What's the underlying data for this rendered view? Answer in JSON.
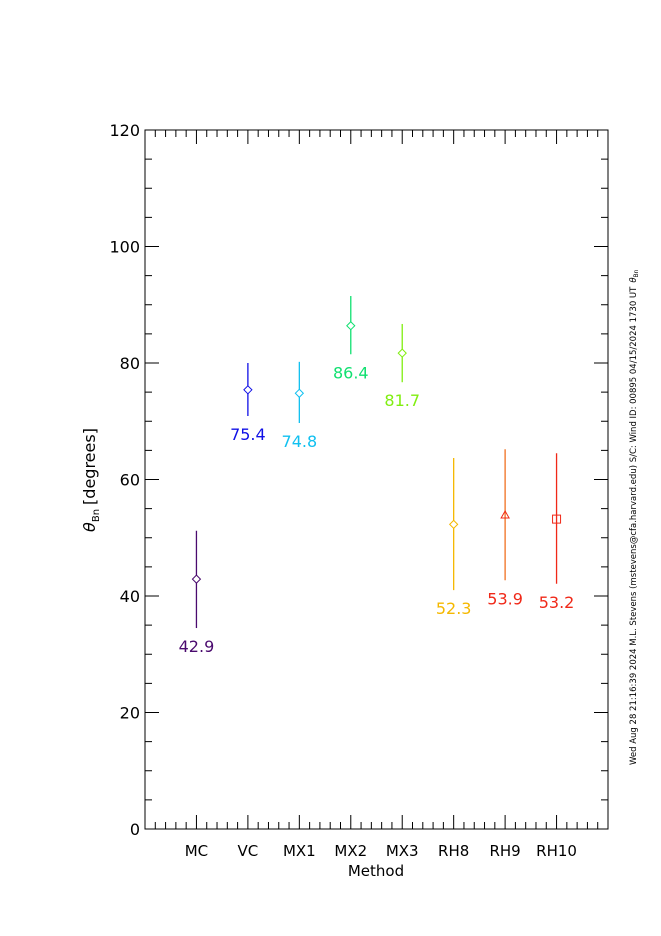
{
  "chart_data": {
    "type": "scatter",
    "title": "",
    "xlabel": "Method",
    "ylabel_symbol": "θ",
    "ylabel_subscript": "Bn",
    "ylabel_units": "[degrees]",
    "ylim": [
      0,
      120
    ],
    "yticks": [
      0,
      20,
      40,
      60,
      80,
      100,
      120
    ],
    "yminor_step": 5,
    "xlim": [
      0,
      9
    ],
    "grid": false,
    "categories": [
      "MC",
      "VC",
      "MX1",
      "MX2",
      "MX3",
      "RH8",
      "RH9",
      "RH10"
    ],
    "points": [
      {
        "method": "MC",
        "value": 42.9,
        "err_low": 34.5,
        "err_high": 51.2,
        "label": "42.9",
        "symbol": "diamond",
        "color": "#4a0a6e",
        "bar_color": "#4a0a6e"
      },
      {
        "method": "VC",
        "value": 75.4,
        "err_low": 70.9,
        "err_high": 80.0,
        "label": "75.4",
        "symbol": "diamond",
        "color": "#1010e6",
        "bar_color": "#1010e6"
      },
      {
        "method": "MX1",
        "value": 74.8,
        "err_low": 69.7,
        "err_high": 80.2,
        "label": "74.8",
        "symbol": "diamond",
        "color": "#10c0f0",
        "bar_color": "#10c0f0"
      },
      {
        "method": "MX2",
        "value": 86.4,
        "err_low": 81.5,
        "err_high": 91.5,
        "label": "86.4",
        "symbol": "diamond",
        "color": "#10e070",
        "bar_color": "#10e070"
      },
      {
        "method": "MX3",
        "value": 81.7,
        "err_low": 76.7,
        "err_high": 86.7,
        "label": "81.7",
        "symbol": "diamond",
        "color": "#80ee10",
        "bar_color": "#80ee10"
      },
      {
        "method": "RH8",
        "value": 52.3,
        "err_low": 41.0,
        "err_high": 63.7,
        "label": "52.3",
        "symbol": "diamond",
        "color": "#f5b800",
        "bar_color": "#f5b800"
      },
      {
        "method": "RH9",
        "value": 53.9,
        "err_low": 42.7,
        "err_high": 65.2,
        "label": "53.9",
        "symbol": "triangle",
        "color": "#f02818",
        "bar_color": "#f07020"
      },
      {
        "method": "RH10",
        "value": 53.2,
        "err_low": 42.1,
        "err_high": 64.5,
        "label": "53.2",
        "symbol": "square",
        "color": "#f02818",
        "bar_color": "#f02818"
      }
    ]
  },
  "side_text": "Wed Aug 28 21:16:39 2024  M.L. Stevens (mstevens@cfa.harvard.edu)  S/C: Wind ID: 00895 04/15/2024  1730 UT",
  "side_symbol": "θ",
  "side_subscript": "Bn"
}
